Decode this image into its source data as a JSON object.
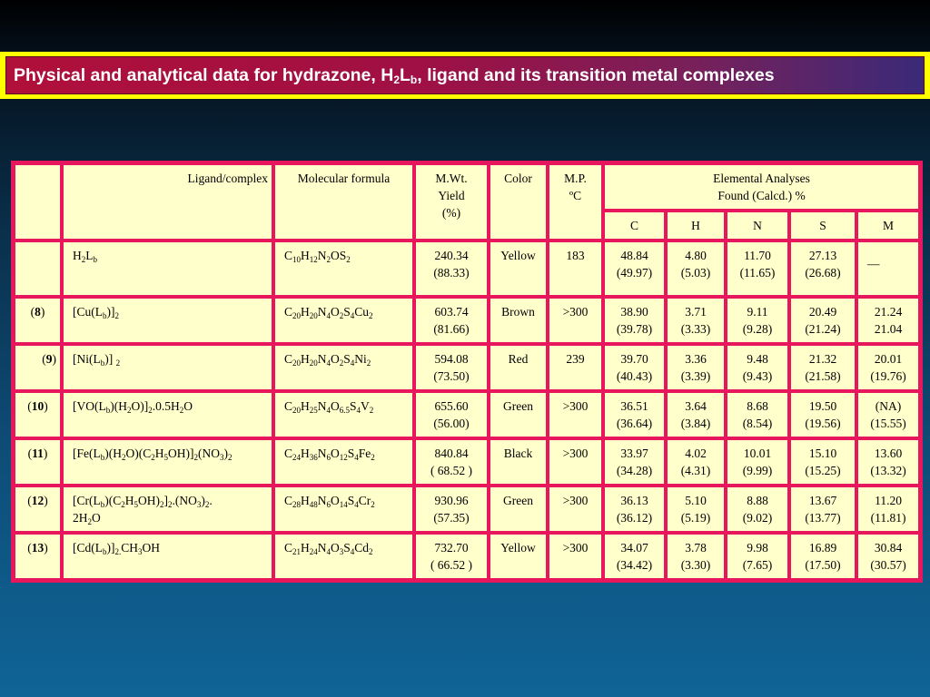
{
  "title": {
    "pre": "Physical and analytical data for hydrazone, H",
    "s1": "2",
    "mid": "L",
    "s2": "b",
    "post": ", ligand and its transition metal complexes"
  },
  "headers": {
    "ligand": "Ligand/complex",
    "formula": "Molecular formula",
    "mwt_line1": "M.Wt.",
    "mwt_line2": "Yield",
    "mwt_line3": "(%)",
    "color": "Color",
    "mp_line1": "M.P.",
    "mp_line2": "ºC",
    "ea_line1": "Elemental Analyses",
    "ea_line2": "Found (Calcd.) %",
    "c": "C",
    "h": "H",
    "n": "N",
    "s": "S",
    "m": "M"
  },
  "rows": [
    {
      "num": "",
      "ligand": [
        [
          "H",
          ""
        ],
        [
          "2",
          "s"
        ],
        [
          "L",
          ""
        ],
        [
          "b",
          "s"
        ]
      ],
      "formula": [
        [
          "C",
          ""
        ],
        [
          "10",
          "s"
        ],
        [
          "H",
          ""
        ],
        [
          "12",
          "s"
        ],
        [
          "N",
          ""
        ],
        [
          "2",
          "s"
        ],
        [
          "OS",
          ""
        ],
        [
          "2",
          "s"
        ]
      ],
      "mwt": "240.34",
      "yield": "(88.33)",
      "color": "Yellow",
      "mp": "183",
      "c": [
        "48.84",
        "(49.97)"
      ],
      "h": [
        "4.80",
        "(5.03)"
      ],
      "n": [
        "11.70",
        "(11.65)"
      ],
      "s": [
        "27.13",
        "(26.68)"
      ],
      "m": [
        "—",
        ""
      ]
    },
    {
      "num": "8",
      "ligand": [
        [
          "[Cu(L",
          ""
        ],
        [
          "b",
          "s"
        ],
        [
          ")]",
          ""
        ],
        [
          "2",
          "s"
        ]
      ],
      "formula": [
        [
          "C",
          ""
        ],
        [
          "20",
          "s"
        ],
        [
          "H",
          ""
        ],
        [
          "20",
          "s"
        ],
        [
          "N",
          ""
        ],
        [
          "4",
          "s"
        ],
        [
          "O",
          ""
        ],
        [
          "2",
          "s"
        ],
        [
          "S",
          ""
        ],
        [
          "4",
          "s"
        ],
        [
          "Cu",
          ""
        ],
        [
          "2",
          "s"
        ]
      ],
      "mwt": "603.74",
      "yield": "(81.66)",
      "color": "Brown",
      "mp": ">300",
      "c": [
        "38.90",
        "(39.78)"
      ],
      "h": [
        "3.71",
        "(3.33)"
      ],
      "n": [
        "9.11",
        "(9.28)"
      ],
      "s": [
        "20.49",
        "(21.24)"
      ],
      "m": [
        "21.24",
        "21.04"
      ]
    },
    {
      "num": "9",
      "ligand": [
        [
          "[Ni(L",
          ""
        ],
        [
          "b",
          "s"
        ],
        [
          ")] ",
          ""
        ],
        [
          "2",
          "s"
        ]
      ],
      "formula": [
        [
          "C",
          ""
        ],
        [
          "20",
          "s"
        ],
        [
          "H",
          ""
        ],
        [
          "20",
          "s"
        ],
        [
          "N",
          ""
        ],
        [
          "4",
          "s"
        ],
        [
          "O",
          ""
        ],
        [
          "2",
          "s"
        ],
        [
          "S",
          ""
        ],
        [
          "4",
          "s"
        ],
        [
          "Ni",
          ""
        ],
        [
          "2",
          "s"
        ]
      ],
      "mwt": "594.08",
      "yield": "(73.50)",
      "color": "Red",
      "mp": "239",
      "c": [
        "39.70",
        "(40.43)"
      ],
      "h": [
        "3.36",
        "(3.39)"
      ],
      "n": [
        "9.48",
        "(9.43)"
      ],
      "s": [
        "21.32",
        "(21.58)"
      ],
      "m": [
        "20.01",
        "(19.76)"
      ]
    },
    {
      "num": "10",
      "ligand": [
        [
          "[VO(L",
          ""
        ],
        [
          "b",
          "s"
        ],
        [
          ")(H",
          ""
        ],
        [
          "2",
          "s"
        ],
        [
          "O)]",
          ""
        ],
        [
          "2",
          "s"
        ],
        [
          ".0.5H",
          ""
        ],
        [
          "2",
          "s"
        ],
        [
          "O",
          ""
        ]
      ],
      "formula": [
        [
          "C",
          ""
        ],
        [
          "20",
          "s"
        ],
        [
          "H",
          ""
        ],
        [
          "25",
          "s"
        ],
        [
          "N",
          ""
        ],
        [
          "4",
          "s"
        ],
        [
          "O",
          ""
        ],
        [
          "6.5",
          "s"
        ],
        [
          "S",
          ""
        ],
        [
          "4",
          "s"
        ],
        [
          "V",
          ""
        ],
        [
          "2",
          "s"
        ]
      ],
      "mwt": "655.60",
      "yield": "(56.00)",
      "color": "Green",
      "mp": ">300",
      "c": [
        "36.51",
        "(36.64)"
      ],
      "h": [
        "3.64",
        "(3.84)"
      ],
      "n": [
        "8.68",
        "(8.54)"
      ],
      "s": [
        "19.50",
        "(19.56)"
      ],
      "m": [
        "(NA)",
        "(15.55)"
      ]
    },
    {
      "num": "11",
      "ligand": [
        [
          "[Fe(L",
          ""
        ],
        [
          "b",
          "s"
        ],
        [
          ")(H",
          ""
        ],
        [
          "2",
          "s"
        ],
        [
          "O)(C",
          ""
        ],
        [
          "2",
          "s"
        ],
        [
          "H",
          ""
        ],
        [
          "5",
          "s"
        ],
        [
          "OH)]",
          ""
        ],
        [
          "2",
          "s"
        ],
        [
          "(NO",
          ""
        ],
        [
          "3",
          "s"
        ],
        [
          ")",
          ""
        ],
        [
          "2",
          "s"
        ]
      ],
      "formula": [
        [
          "C",
          ""
        ],
        [
          "24",
          "s"
        ],
        [
          "H",
          ""
        ],
        [
          "36",
          "s"
        ],
        [
          "N",
          ""
        ],
        [
          "6",
          "s"
        ],
        [
          "O",
          ""
        ],
        [
          "12",
          "s"
        ],
        [
          "S",
          ""
        ],
        [
          "4",
          "s"
        ],
        [
          "Fe",
          ""
        ],
        [
          "2",
          "s"
        ]
      ],
      "mwt": "840.84",
      "yield": "( 68.52 )",
      "color": "Black",
      "mp": ">300",
      "c": [
        "33.97",
        "(34.28)"
      ],
      "h": [
        "4.02",
        "(4.31)"
      ],
      "n": [
        "10.01",
        "(9.99)"
      ],
      "s": [
        "15.10",
        "(15.25)"
      ],
      "m": [
        "13.60",
        "(13.32)"
      ]
    },
    {
      "num": "12",
      "ligand": [
        [
          "[Cr(L",
          ""
        ],
        [
          "b",
          "s"
        ],
        [
          ")(C",
          ""
        ],
        [
          "2",
          "s"
        ],
        [
          "H",
          ""
        ],
        [
          "5",
          "s"
        ],
        [
          "OH)",
          ""
        ],
        [
          "2",
          "s"
        ],
        [
          "]",
          ""
        ],
        [
          "2",
          "s"
        ],
        [
          ".(NO",
          ""
        ],
        [
          "3",
          "s"
        ],
        [
          ")",
          ""
        ],
        [
          "2",
          "s"
        ],
        [
          ".",
          ""
        ],
        [
          "br",
          ""
        ],
        [
          "2H",
          ""
        ],
        [
          "2",
          "s"
        ],
        [
          "O",
          ""
        ]
      ],
      "formula": [
        [
          "C",
          ""
        ],
        [
          "28",
          "s"
        ],
        [
          "H",
          ""
        ],
        [
          "48",
          "s"
        ],
        [
          "N",
          ""
        ],
        [
          "6",
          "s"
        ],
        [
          "O",
          ""
        ],
        [
          "14",
          "s"
        ],
        [
          "S",
          ""
        ],
        [
          "4",
          "s"
        ],
        [
          "Cr",
          ""
        ],
        [
          "2",
          "s"
        ]
      ],
      "mwt": "930.96",
      "yield": "(57.35)",
      "color": "Green",
      "mp": ">300",
      "c": [
        "36.13",
        "(36.12)"
      ],
      "h": [
        "5.10",
        "(5.19)"
      ],
      "n": [
        "8.88",
        "(9.02)"
      ],
      "s": [
        "13.67",
        "(13.77)"
      ],
      "m": [
        "11.20",
        "(11.81)"
      ]
    },
    {
      "num": "13",
      "ligand": [
        [
          "[Cd(L",
          ""
        ],
        [
          "b",
          "s"
        ],
        [
          ")]",
          ""
        ],
        [
          "2.",
          "s"
        ],
        [
          "CH",
          ""
        ],
        [
          "3",
          "s"
        ],
        [
          "OH",
          ""
        ]
      ],
      "formula": [
        [
          "C",
          ""
        ],
        [
          "21",
          "s"
        ],
        [
          "H",
          ""
        ],
        [
          "24",
          "s"
        ],
        [
          "N",
          ""
        ],
        [
          "4",
          "s"
        ],
        [
          "O",
          ""
        ],
        [
          "3",
          "s"
        ],
        [
          "S",
          ""
        ],
        [
          "4",
          "s"
        ],
        [
          "Cd",
          ""
        ],
        [
          "2",
          "s"
        ]
      ],
      "mwt": "732.70",
      "yield": "( 66.52 )",
      "color": "Yellow",
      "mp": ">300",
      "c": [
        "34.07",
        "(34.42)"
      ],
      "h": [
        "3.78",
        "(3.30)"
      ],
      "n": [
        "9.98",
        "(7.65)"
      ],
      "s": [
        "16.89",
        "(17.50)"
      ],
      "m": [
        "30.84",
        "(30.57)"
      ]
    }
  ]
}
